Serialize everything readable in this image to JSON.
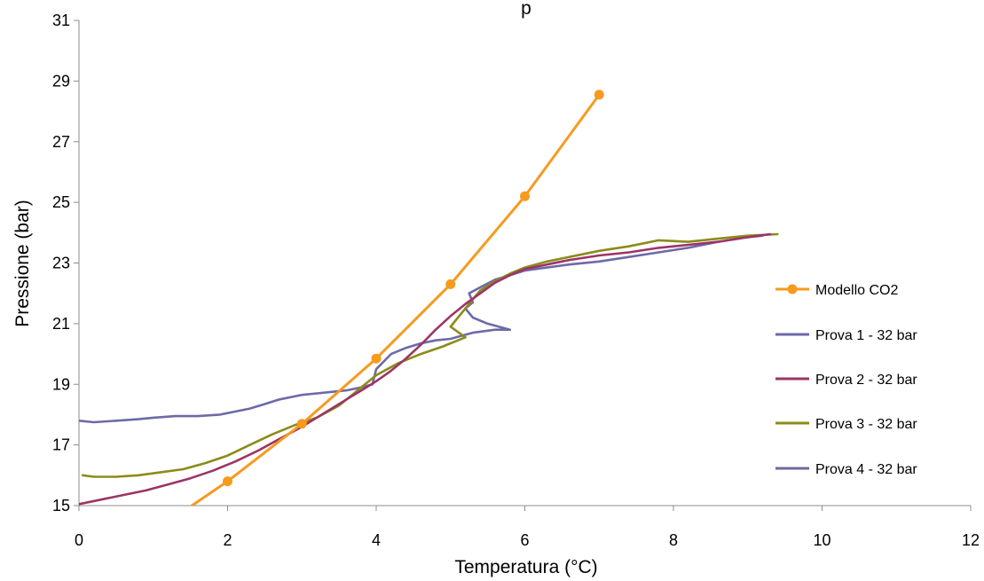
{
  "chart_data": {
    "type": "line",
    "title": "p",
    "xlabel": "Temperatura (°C)",
    "ylabel": "Pressione (bar)",
    "xlim": [
      0,
      12
    ],
    "ylim": [
      15,
      31
    ],
    "xticks": [
      0,
      2,
      4,
      6,
      8,
      10,
      12
    ],
    "yticks": [
      15,
      17,
      19,
      21,
      23,
      25,
      27,
      29,
      31
    ],
    "grid": false,
    "legend_position": "right",
    "series": [
      {
        "name": "Modello CO2",
        "color": "#F79A1E",
        "markers": true,
        "x": [
          1.4,
          2,
          3,
          4,
          5,
          6,
          7
        ],
        "y": [
          14.8,
          15.8,
          17.7,
          19.85,
          22.3,
          25.2,
          28.55
        ]
      },
      {
        "name": "Prova 1 - 32 bar",
        "color": "#6C6AA8",
        "markers": false,
        "x": [
          0.0,
          0.2,
          0.5,
          0.8,
          1.0,
          1.3,
          1.6,
          1.9,
          2.1,
          2.3,
          2.5,
          2.7,
          2.9,
          3.0,
          3.2,
          3.4,
          3.6,
          3.8,
          3.95,
          4.0,
          4.2,
          4.4,
          4.6,
          4.8,
          5.0,
          5.15,
          5.3,
          5.6,
          5.8,
          5.5,
          5.3,
          5.2,
          5.3,
          5.25,
          5.4,
          5.6,
          5.8,
          6.0,
          6.3,
          6.6,
          7.0,
          7.4,
          7.8,
          8.2,
          8.6,
          9.0,
          9.2
        ],
        "y": [
          17.8,
          17.75,
          17.8,
          17.85,
          17.9,
          17.95,
          17.95,
          18.0,
          18.1,
          18.2,
          18.35,
          18.5,
          18.6,
          18.65,
          18.7,
          18.75,
          18.8,
          18.9,
          19.0,
          19.5,
          20.0,
          20.2,
          20.35,
          20.45,
          20.5,
          20.6,
          20.7,
          20.8,
          20.8,
          21.0,
          21.2,
          21.5,
          21.7,
          22.0,
          22.2,
          22.45,
          22.6,
          22.75,
          22.85,
          22.95,
          23.05,
          23.2,
          23.35,
          23.5,
          23.7,
          23.85,
          23.9
        ]
      },
      {
        "name": "Prova 2 - 32 bar",
        "color": "#9C3466",
        "markers": false,
        "x": [
          0.0,
          0.3,
          0.6,
          0.9,
          1.2,
          1.5,
          1.8,
          2.1,
          2.4,
          2.7,
          3.0,
          3.3,
          3.6,
          3.8,
          4.0,
          4.2,
          4.4,
          4.6,
          4.8,
          5.0,
          5.2,
          5.4,
          5.6,
          5.8,
          6.0,
          6.3,
          6.6,
          7.0,
          7.4,
          7.8,
          8.2,
          8.6,
          9.0,
          9.3
        ],
        "y": [
          15.05,
          15.2,
          15.35,
          15.5,
          15.7,
          15.9,
          16.15,
          16.45,
          16.8,
          17.2,
          17.6,
          18.05,
          18.5,
          18.8,
          19.1,
          19.45,
          19.85,
          20.3,
          20.8,
          21.25,
          21.65,
          22.0,
          22.35,
          22.6,
          22.8,
          22.95,
          23.1,
          23.25,
          23.35,
          23.5,
          23.6,
          23.7,
          23.85,
          23.95
        ]
      },
      {
        "name": "Prova 3 - 32 bar",
        "color": "#8B8B1A",
        "markers": false,
        "x": [
          0.05,
          0.2,
          0.5,
          0.8,
          1.1,
          1.4,
          1.7,
          2.0,
          2.3,
          2.6,
          2.9,
          3.2,
          3.5,
          3.7,
          4.0,
          4.3,
          4.6,
          4.9,
          5.1,
          5.2,
          5.0,
          5.1,
          5.2,
          5.3,
          5.4,
          5.6,
          5.8,
          6.0,
          6.3,
          6.6,
          7.0,
          7.4,
          7.8,
          8.2,
          8.6,
          9.0,
          9.4
        ],
        "y": [
          16.0,
          15.95,
          15.95,
          16.0,
          16.1,
          16.2,
          16.4,
          16.65,
          17.0,
          17.35,
          17.65,
          17.9,
          18.3,
          18.7,
          19.3,
          19.7,
          20.0,
          20.25,
          20.45,
          20.55,
          20.9,
          21.2,
          21.5,
          21.8,
          22.1,
          22.4,
          22.65,
          22.85,
          23.05,
          23.2,
          23.4,
          23.55,
          23.75,
          23.7,
          23.8,
          23.9,
          23.95
        ]
      },
      {
        "name": "Prova 4 - 32 bar",
        "color": "#6C6A9E",
        "markers": false,
        "x": [
          0.0,
          0.3,
          0.6,
          0.9,
          1.2,
          1.5,
          1.8,
          2.1,
          2.4,
          2.7,
          3.0,
          3.3,
          3.6,
          3.9,
          4.2,
          4.5,
          4.8,
          5.0,
          5.2,
          5.4,
          5.6,
          5.8,
          6.0,
          6.3,
          6.6,
          7.0,
          7.4,
          7.8,
          8.2,
          8.6,
          9.0,
          9.3
        ],
        "y": [
          16.15,
          16.05,
          16.05,
          16.15,
          16.3,
          16.5,
          16.7,
          17.0,
          17.35,
          17.7,
          18.1,
          18.5,
          19.0,
          19.5,
          20.0,
          20.55,
          21.0,
          21.45,
          21.8,
          22.1,
          22.35,
          22.55,
          22.7,
          22.85,
          22.95,
          23.05,
          23.15,
          23.3,
          23.45,
          23.6,
          23.75,
          23.9
        ]
      }
    ]
  }
}
